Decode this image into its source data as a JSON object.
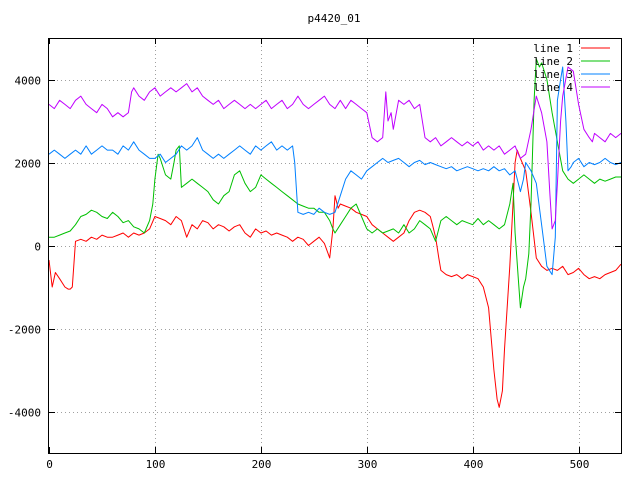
{
  "chart_data": {
    "type": "line",
    "title": "p4420_01",
    "xlabel": "",
    "ylabel": "",
    "xlim": [
      0,
      540
    ],
    "ylim": [
      -5000,
      5000
    ],
    "xticks": [
      0,
      100,
      200,
      300,
      400,
      500
    ],
    "yticks": [
      -4000,
      -2000,
      0,
      2000,
      4000
    ],
    "xtick_labels": [
      "0",
      "100",
      "200",
      "300",
      "400",
      "500"
    ],
    "ytick_labels": [
      "-4000",
      "-2000",
      "0",
      "2000",
      "4000"
    ],
    "grid": true,
    "legend_position": "top-right",
    "series": [
      {
        "name": "line 1",
        "color": "#ff0000",
        "x": [
          0,
          3,
          6,
          10,
          15,
          18,
          20,
          22,
          25,
          30,
          35,
          40,
          45,
          50,
          55,
          60,
          65,
          70,
          75,
          80,
          85,
          90,
          95,
          100,
          105,
          110,
          115,
          120,
          125,
          130,
          135,
          140,
          145,
          150,
          155,
          160,
          165,
          170,
          175,
          180,
          185,
          190,
          195,
          200,
          205,
          210,
          215,
          220,
          225,
          230,
          235,
          240,
          245,
          250,
          255,
          260,
          265,
          268,
          270,
          273,
          275,
          280,
          285,
          290,
          295,
          300,
          305,
          310,
          315,
          320,
          325,
          330,
          335,
          340,
          345,
          350,
          355,
          360,
          362,
          365,
          368,
          370,
          375,
          380,
          385,
          390,
          395,
          400,
          405,
          410,
          415,
          420,
          423,
          425,
          428,
          430,
          435,
          438,
          440,
          442,
          445,
          450,
          455,
          460,
          465,
          470,
          475,
          480,
          485,
          490,
          495,
          500,
          505,
          510,
          515,
          520,
          525,
          530,
          535,
          540
        ],
        "y": [
          -350,
          -1000,
          -650,
          -800,
          -1000,
          -1050,
          -1050,
          -1000,
          100,
          150,
          100,
          200,
          150,
          250,
          200,
          200,
          250,
          300,
          200,
          300,
          250,
          300,
          400,
          700,
          650,
          600,
          500,
          700,
          600,
          200,
          500,
          400,
          600,
          550,
          400,
          500,
          450,
          350,
          450,
          500,
          300,
          200,
          400,
          300,
          350,
          250,
          300,
          250,
          200,
          100,
          200,
          150,
          0,
          100,
          200,
          50,
          -300,
          400,
          1200,
          900,
          1000,
          950,
          900,
          800,
          750,
          700,
          500,
          400,
          300,
          200,
          100,
          200,
          300,
          600,
          800,
          850,
          800,
          700,
          500,
          200,
          -300,
          -600,
          -700,
          -750,
          -700,
          -800,
          -700,
          -750,
          -800,
          -1000,
          -1500,
          -3000,
          -3700,
          -3900,
          -3500,
          -2500,
          -500,
          1000,
          2000,
          2300,
          2100,
          1800,
          800,
          -300,
          -500,
          -600,
          -550,
          -600,
          -500,
          -700,
          -650,
          -550,
          -700,
          -800,
          -750,
          -800,
          -700,
          -650,
          -600,
          -450
        ]
      },
      {
        "name": "line 2",
        "color": "#00c000",
        "x": [
          0,
          5,
          10,
          15,
          20,
          25,
          30,
          35,
          40,
          45,
          50,
          55,
          60,
          65,
          70,
          75,
          80,
          85,
          90,
          95,
          98,
          100,
          103,
          105,
          110,
          115,
          118,
          120,
          123,
          125,
          130,
          135,
          140,
          145,
          150,
          155,
          160,
          165,
          170,
          175,
          180,
          185,
          190,
          195,
          200,
          205,
          210,
          215,
          220,
          225,
          230,
          235,
          240,
          245,
          250,
          255,
          260,
          265,
          268,
          270,
          275,
          280,
          285,
          290,
          295,
          300,
          305,
          310,
          315,
          320,
          325,
          330,
          335,
          340,
          345,
          350,
          355,
          360,
          365,
          370,
          375,
          380,
          385,
          390,
          395,
          400,
          405,
          410,
          415,
          420,
          425,
          430,
          435,
          438,
          440,
          443,
          445,
          448,
          450,
          453,
          455,
          458,
          460,
          463,
          465,
          470,
          475,
          480,
          485,
          490,
          495,
          500,
          505,
          510,
          515,
          520,
          525,
          530,
          535,
          540
        ],
        "y": [
          200,
          200,
          250,
          300,
          350,
          500,
          700,
          750,
          850,
          800,
          700,
          650,
          800,
          700,
          550,
          600,
          450,
          400,
          300,
          600,
          1000,
          1600,
          2200,
          2100,
          1700,
          1600,
          2000,
          2300,
          2400,
          1400,
          1500,
          1600,
          1500,
          1400,
          1300,
          1100,
          1000,
          1200,
          1300,
          1700,
          1800,
          1500,
          1300,
          1400,
          1700,
          1600,
          1500,
          1400,
          1300,
          1200,
          1100,
          1000,
          950,
          900,
          900,
          800,
          800,
          600,
          400,
          300,
          500,
          700,
          900,
          1000,
          700,
          400,
          300,
          400,
          300,
          350,
          400,
          300,
          500,
          300,
          400,
          600,
          500,
          400,
          100,
          600,
          700,
          600,
          500,
          600,
          550,
          500,
          650,
          500,
          600,
          500,
          400,
          500,
          1000,
          1500,
          300,
          -800,
          -1500,
          -1000,
          -800,
          -200,
          1000,
          3500,
          4500,
          4300,
          4400,
          4000,
          3200,
          2500,
          1800,
          1600,
          1500,
          1600,
          1700,
          1600,
          1500,
          1600,
          1550,
          1600,
          1650,
          1650
        ]
      },
      {
        "name": "line 3",
        "color": "#0080ff",
        "x": [
          0,
          5,
          10,
          15,
          20,
          25,
          30,
          35,
          40,
          45,
          50,
          55,
          60,
          65,
          70,
          75,
          80,
          85,
          90,
          95,
          100,
          105,
          110,
          115,
          120,
          125,
          130,
          135,
          140,
          145,
          150,
          155,
          160,
          165,
          170,
          175,
          180,
          185,
          190,
          195,
          200,
          205,
          210,
          215,
          220,
          225,
          230,
          232,
          235,
          240,
          245,
          250,
          255,
          260,
          265,
          270,
          275,
          280,
          285,
          290,
          295,
          300,
          305,
          310,
          315,
          320,
          325,
          330,
          335,
          340,
          345,
          350,
          355,
          360,
          365,
          370,
          375,
          380,
          385,
          390,
          395,
          400,
          405,
          410,
          415,
          420,
          425,
          430,
          435,
          440,
          443,
          445,
          448,
          450,
          455,
          460,
          465,
          470,
          475,
          478,
          480,
          483,
          485,
          488,
          490,
          493,
          495,
          500,
          505,
          510,
          515,
          520,
          525,
          530,
          535,
          540
        ],
        "y": [
          2200,
          2300,
          2200,
          2100,
          2200,
          2300,
          2200,
          2400,
          2200,
          2300,
          2400,
          2300,
          2300,
          2200,
          2400,
          2300,
          2500,
          2300,
          2200,
          2100,
          2100,
          2200,
          2000,
          2100,
          2200,
          2400,
          2300,
          2400,
          2600,
          2300,
          2200,
          2100,
          2200,
          2100,
          2200,
          2300,
          2400,
          2300,
          2200,
          2400,
          2300,
          2400,
          2500,
          2300,
          2400,
          2300,
          2400,
          2000,
          800,
          750,
          800,
          750,
          900,
          800,
          750,
          800,
          1200,
          1600,
          1800,
          1700,
          1600,
          1800,
          1900,
          2000,
          2100,
          2000,
          2050,
          2100,
          2000,
          1900,
          2000,
          2050,
          1950,
          2000,
          1950,
          1900,
          1850,
          1900,
          1800,
          1850,
          1900,
          1850,
          1800,
          1850,
          1800,
          1900,
          1800,
          1850,
          1700,
          1800,
          1500,
          1300,
          1600,
          2000,
          1800,
          1500,
          500,
          -500,
          -700,
          200,
          3500,
          4000,
          4300,
          3000,
          1800,
          1900,
          2000,
          2100,
          1900,
          2000,
          1950,
          2000,
          2100,
          2000,
          1950,
          2000
        ]
      },
      {
        "name": "line 4",
        "color": "#c000ff",
        "x": [
          0,
          5,
          10,
          15,
          20,
          25,
          30,
          35,
          40,
          45,
          50,
          55,
          60,
          65,
          70,
          75,
          78,
          80,
          85,
          90,
          95,
          100,
          105,
          110,
          115,
          120,
          125,
          130,
          135,
          140,
          145,
          150,
          155,
          160,
          165,
          170,
          175,
          180,
          185,
          190,
          195,
          200,
          205,
          210,
          215,
          220,
          225,
          230,
          235,
          240,
          245,
          250,
          255,
          260,
          265,
          270,
          275,
          280,
          285,
          290,
          295,
          300,
          305,
          310,
          315,
          318,
          320,
          323,
          325,
          330,
          335,
          340,
          345,
          350,
          355,
          360,
          365,
          370,
          375,
          380,
          385,
          390,
          395,
          400,
          405,
          410,
          415,
          420,
          425,
          430,
          435,
          440,
          443,
          445,
          450,
          455,
          460,
          465,
          470,
          473,
          475,
          478,
          480,
          483,
          485,
          490,
          495,
          500,
          505,
          510,
          513,
          515,
          520,
          525,
          530,
          535,
          540
        ],
        "y": [
          3400,
          3300,
          3500,
          3400,
          3300,
          3500,
          3600,
          3400,
          3300,
          3200,
          3400,
          3300,
          3100,
          3200,
          3100,
          3200,
          3700,
          3800,
          3600,
          3500,
          3700,
          3800,
          3600,
          3700,
          3800,
          3700,
          3800,
          3900,
          3700,
          3800,
          3600,
          3500,
          3400,
          3500,
          3300,
          3400,
          3500,
          3400,
          3300,
          3400,
          3300,
          3400,
          3500,
          3300,
          3400,
          3500,
          3300,
          3400,
          3600,
          3400,
          3300,
          3400,
          3500,
          3600,
          3400,
          3300,
          3500,
          3300,
          3500,
          3400,
          3300,
          3200,
          2600,
          2500,
          2600,
          3700,
          3000,
          3200,
          2800,
          3500,
          3400,
          3500,
          3300,
          3400,
          2600,
          2500,
          2600,
          2400,
          2500,
          2600,
          2500,
          2400,
          2500,
          2400,
          2500,
          2300,
          2400,
          2300,
          2400,
          2200,
          2300,
          2400,
          2200,
          2100,
          2200,
          2800,
          3600,
          3200,
          2500,
          1200,
          400,
          600,
          1500,
          3000,
          3600,
          4300,
          4200,
          3400,
          2800,
          2600,
          2500,
          2700,
          2600,
          2500,
          2700,
          2600,
          2700
        ]
      }
    ]
  }
}
